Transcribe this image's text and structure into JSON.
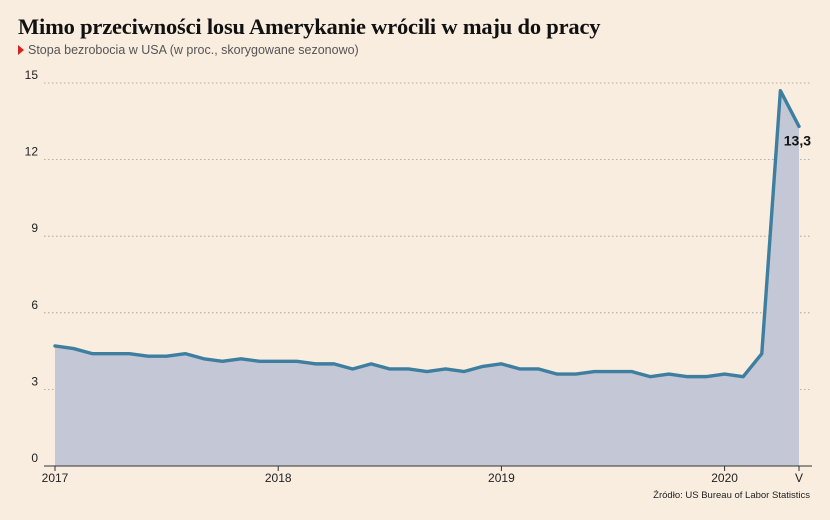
{
  "title": "Mimo przeciwności losu Amerykanie wrócili w maju do pracy",
  "subtitle": "Stopa bezrobocia w USA (w proc., skorygowane sezonowo)",
  "source": "Źródło: US Bureau of Labor Statistics",
  "colors": {
    "line": "#3e7fa0",
    "area": "#c4c8d6",
    "background": "#f9ede0",
    "marker": "#d7221f"
  },
  "chart_data": {
    "type": "area",
    "title": "Mimo przeciwności losu Amerykanie wrócili w maju do pracy",
    "subtitle": "Stopa bezrobocia w USA (w proc., skorygowane sezonowo)",
    "x_start": "2017-01",
    "x_end": "2020-05",
    "xticks": [
      {
        "label": "2017",
        "x": "2017-01"
      },
      {
        "label": "2018",
        "x": "2018-01"
      },
      {
        "label": "2019",
        "x": "2019-01"
      },
      {
        "label": "2020",
        "x": "2020-01"
      },
      {
        "label": "V",
        "x": "2020-05"
      }
    ],
    "yticks": [
      0,
      3,
      6,
      9,
      12,
      15
    ],
    "ylim": [
      0,
      15
    ],
    "grid": true,
    "series": [
      {
        "x": [
          "2017-01",
          "2017-02",
          "2017-03",
          "2017-04",
          "2017-05",
          "2017-06",
          "2017-07",
          "2017-08",
          "2017-09",
          "2017-10",
          "2017-11",
          "2017-12",
          "2018-01",
          "2018-02",
          "2018-03",
          "2018-04",
          "2018-05",
          "2018-06",
          "2018-07",
          "2018-08",
          "2018-09",
          "2018-10",
          "2018-11",
          "2018-12",
          "2019-01",
          "2019-02",
          "2019-03",
          "2019-04",
          "2019-05",
          "2019-06",
          "2019-07",
          "2019-08",
          "2019-09",
          "2019-10",
          "2019-11",
          "2019-12",
          "2020-01",
          "2020-02",
          "2020-03",
          "2020-04",
          "2020-05"
        ],
        "values": [
          4.7,
          4.6,
          4.4,
          4.4,
          4.4,
          4.3,
          4.3,
          4.4,
          4.2,
          4.1,
          4.2,
          4.1,
          4.1,
          4.1,
          4.0,
          4.0,
          3.8,
          4.0,
          3.8,
          3.8,
          3.7,
          3.8,
          3.7,
          3.9,
          4.0,
          3.8,
          3.8,
          3.6,
          3.6,
          3.7,
          3.7,
          3.7,
          3.5,
          3.6,
          3.5,
          3.5,
          3.6,
          3.5,
          4.4,
          14.7,
          13.3
        ]
      }
    ],
    "annotations": [
      {
        "x": "2020-05",
        "y": 13.3,
        "text": "13,3"
      }
    ]
  }
}
